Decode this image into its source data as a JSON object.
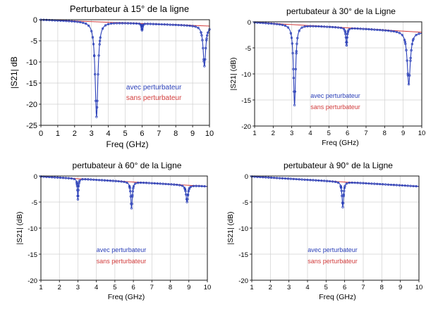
{
  "colors": {
    "with": "#2a3fb8",
    "without": "#d13b3b",
    "grid": "#d0d0d0"
  },
  "chart_data": [
    {
      "type": "line",
      "title": "Perturbateur à 15° de la ligne",
      "xlabel": "Freq (GHz)",
      "ylabel": "|S21| dB",
      "xlim": [
        0,
        10
      ],
      "ylim": [
        -25,
        0
      ],
      "xticks": [
        "0",
        "1",
        "2",
        "3",
        "4",
        "5",
        "6",
        "7",
        "8",
        "9",
        "10"
      ],
      "yticks": [
        "0",
        "-5",
        "-10",
        "-15",
        "-20",
        "-25"
      ],
      "grid": true,
      "legend_position": "bottom-right",
      "series": [
        {
          "name": "avec perturbateur",
          "marker": "circle",
          "color": "#2a3fb8",
          "baseline": {
            "start": 0,
            "end": -1.5
          },
          "resonances": [
            {
              "f": 3.3,
              "depth": -23,
              "width": 0.1
            },
            {
              "f": 6.0,
              "depth": -2.5,
              "width": 0.03
            },
            {
              "f": 9.7,
              "depth": -11,
              "width": 0.09
            }
          ]
        },
        {
          "name": "sans perturbateur",
          "marker": "none",
          "color": "#d13b3b",
          "baseline": {
            "start": 0,
            "end": -1.5
          },
          "resonances": []
        }
      ]
    },
    {
      "type": "line",
      "title": "pertubateur à 30° de la Ligne",
      "xlabel": "Freq (GHz)",
      "ylabel": "|S21| (dB)",
      "xlim": [
        1,
        10
      ],
      "ylim": [
        -20,
        0
      ],
      "xticks": [
        "1",
        "2",
        "3",
        "4",
        "5",
        "6",
        "7",
        "8",
        "9",
        "10"
      ],
      "yticks": [
        "0",
        "-5",
        "-10",
        "-15",
        "-20"
      ],
      "grid": true,
      "legend_position": "bottom-center",
      "series": [
        {
          "name": "avec perturbateur",
          "marker": "circle",
          "color": "#2a3fb8",
          "baseline": {
            "start": -0.1,
            "end": -2.0
          },
          "resonances": [
            {
              "f": 3.15,
              "depth": -16,
              "width": 0.07
            },
            {
              "f": 5.95,
              "depth": -4.5,
              "width": 0.04
            },
            {
              "f": 9.3,
              "depth": -12,
              "width": 0.1
            }
          ]
        },
        {
          "name": "sans perturbateur",
          "marker": "none",
          "color": "#d13b3b",
          "baseline": {
            "start": -0.1,
            "end": -2.0
          },
          "resonances": []
        }
      ]
    },
    {
      "type": "line",
      "title": "pertubateur à 60° de la Ligne",
      "xlabel": "Freq (GHz)",
      "ylabel": "|S21| (dB)",
      "xlim": [
        1,
        10
      ],
      "ylim": [
        -20,
        0
      ],
      "xticks": [
        "1",
        "2",
        "3",
        "4",
        "5",
        "6",
        "7",
        "8",
        "9",
        "10"
      ],
      "yticks": [
        "0",
        "-5",
        "-10",
        "-15",
        "-20"
      ],
      "grid": true,
      "legend_position": "bottom-center",
      "series": [
        {
          "name": "avec perturbateur",
          "marker": "circle",
          "color": "#2a3fb8",
          "baseline": {
            "start": -0.1,
            "end": -2.0
          },
          "resonances": [
            {
              "f": 3.0,
              "depth": -4.5,
              "width": 0.03
            },
            {
              "f": 5.9,
              "depth": -6.2,
              "width": 0.05
            },
            {
              "f": 8.9,
              "depth": -5.0,
              "width": 0.06
            }
          ]
        },
        {
          "name": "sans perturbateur",
          "marker": "none",
          "color": "#d13b3b",
          "baseline": {
            "start": -0.1,
            "end": -2.0
          },
          "resonances": []
        }
      ]
    },
    {
      "type": "line",
      "title": "pertubateur à 90° de la Ligne",
      "xlabel": "Freq (GHz)",
      "ylabel": "|S21| (dB)",
      "xlim": [
        1,
        10
      ],
      "ylim": [
        -20,
        0
      ],
      "xticks": [
        "1",
        "2",
        "3",
        "4",
        "5",
        "6",
        "7",
        "8",
        "9",
        "10"
      ],
      "yticks": [
        "0",
        "-5",
        "-10",
        "-15",
        "-20"
      ],
      "grid": true,
      "legend_position": "bottom-center",
      "series": [
        {
          "name": "avec perturbateur",
          "marker": "circle",
          "color": "#2a3fb8",
          "baseline": {
            "start": -0.1,
            "end": -2.0
          },
          "resonances": [
            {
              "f": 5.9,
              "depth": -6.0,
              "width": 0.05
            }
          ]
        },
        {
          "name": "sans perturbateur",
          "marker": "none",
          "color": "#d13b3b",
          "baseline": {
            "start": -0.1,
            "end": -2.0
          },
          "resonances": []
        }
      ]
    }
  ]
}
